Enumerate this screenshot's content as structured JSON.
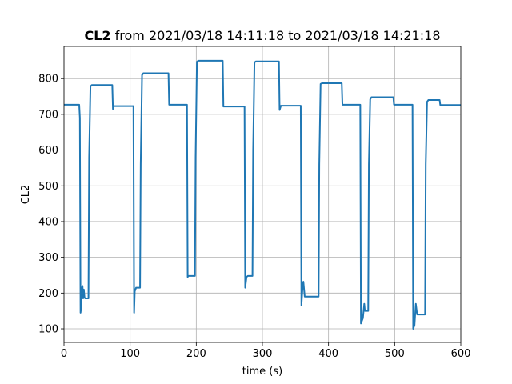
{
  "title": {
    "bold": "CL2",
    "rest": " from 2021/03/18 14:11:18 to 2021/03/18 14:21:18"
  },
  "chart_data": {
    "type": "line",
    "xlabel": "time (s)",
    "ylabel": "CL2",
    "xlim": [
      0,
      600
    ],
    "ylim": [
      62,
      890
    ],
    "grid": true,
    "x_ticks": [
      0,
      100,
      200,
      300,
      400,
      500,
      600
    ],
    "y_ticks": [
      100,
      200,
      300,
      400,
      500,
      600,
      700,
      800
    ],
    "series": [
      {
        "color": "#1f77b4",
        "points": [
          [
            0,
            727
          ],
          [
            23,
            727
          ],
          [
            24,
            690
          ],
          [
            25,
            145
          ],
          [
            26,
            160
          ],
          [
            27,
            215
          ],
          [
            28,
            220
          ],
          [
            29,
            185
          ],
          [
            30,
            210
          ],
          [
            31,
            188
          ],
          [
            32,
            185
          ],
          [
            37,
            185
          ],
          [
            38,
            580
          ],
          [
            40,
            778
          ],
          [
            42,
            782
          ],
          [
            62,
            782
          ],
          [
            73,
            782
          ],
          [
            74,
            715
          ],
          [
            75,
            723
          ],
          [
            105,
            723
          ],
          [
            106,
            145
          ],
          [
            107,
            205
          ],
          [
            109,
            215
          ],
          [
            115,
            215
          ],
          [
            116,
            560
          ],
          [
            118,
            810
          ],
          [
            120,
            815
          ],
          [
            158,
            815
          ],
          [
            159,
            727
          ],
          [
            186,
            727
          ],
          [
            187,
            245
          ],
          [
            188,
            248
          ],
          [
            198,
            248
          ],
          [
            199,
            580
          ],
          [
            201,
            847
          ],
          [
            203,
            850
          ],
          [
            240,
            850
          ],
          [
            241,
            722
          ],
          [
            273,
            722
          ],
          [
            274,
            215
          ],
          [
            276,
            245
          ],
          [
            278,
            248
          ],
          [
            285,
            248
          ],
          [
            286,
            600
          ],
          [
            288,
            845
          ],
          [
            290,
            848
          ],
          [
            325,
            848
          ],
          [
            326,
            712
          ],
          [
            328,
            724
          ],
          [
            358,
            724
          ],
          [
            359,
            165
          ],
          [
            361,
            225
          ],
          [
            362,
            232
          ],
          [
            364,
            190
          ],
          [
            385,
            190
          ],
          [
            386,
            560
          ],
          [
            388,
            785
          ],
          [
            390,
            787
          ],
          [
            420,
            787
          ],
          [
            421,
            727
          ],
          [
            448,
            727
          ],
          [
            449,
            115
          ],
          [
            452,
            130
          ],
          [
            454,
            170
          ],
          [
            455,
            150
          ],
          [
            460,
            150
          ],
          [
            461,
            560
          ],
          [
            463,
            742
          ],
          [
            465,
            748
          ],
          [
            498,
            748
          ],
          [
            499,
            727
          ],
          [
            527,
            727
          ],
          [
            528,
            100
          ],
          [
            530,
            110
          ],
          [
            532,
            170
          ],
          [
            534,
            140
          ],
          [
            546,
            140
          ],
          [
            547,
            560
          ],
          [
            549,
            735
          ],
          [
            551,
            740
          ],
          [
            568,
            740
          ],
          [
            569,
            726
          ],
          [
            600,
            726
          ]
        ]
      }
    ]
  }
}
